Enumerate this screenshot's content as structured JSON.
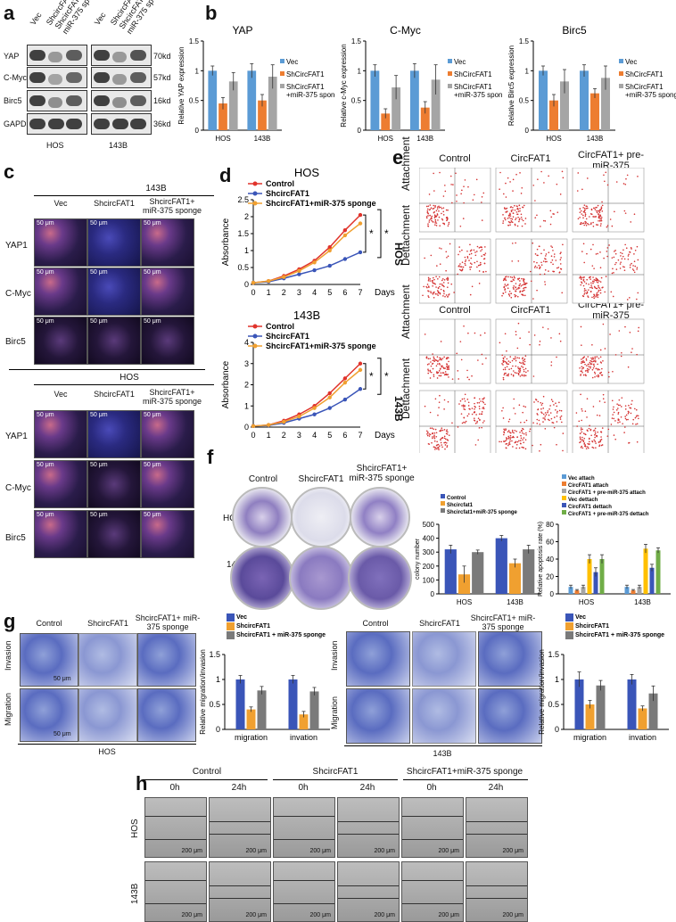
{
  "panels": {
    "a": {
      "letter": "a",
      "col_labels": [
        "Vec",
        "ShcircFAT1",
        "ShcircFAT1+ miR-375 sponge",
        "Vec",
        "ShcircFAT1",
        "ShcircFAT1+ miR-375 sponge"
      ],
      "rows": [
        "YAP",
        "C-Myc",
        "Birc5",
        "GAPDH"
      ],
      "kd": [
        "70kd",
        "57kd",
        "16kd",
        "36kd"
      ],
      "groups": [
        "HOS",
        "143B"
      ]
    },
    "b": {
      "letter": "b",
      "legend": [
        "Vec",
        "ShCircFAT1",
        "ShCircFAT1 +miR-375 sponge"
      ]
    },
    "c": {
      "letter": "c",
      "top_group": "143B",
      "bottom_group": "HOS",
      "col_labels": [
        "Vec",
        "ShcircFAT1",
        "ShcircFAT1+ miR-375 sponge"
      ],
      "row_labels": [
        "YAP1",
        "C-Myc",
        "Birc5"
      ],
      "scale": "50 μm"
    },
    "d": {
      "letter": "d",
      "sig": "*"
    },
    "e": {
      "letter": "e",
      "col_labels": [
        "Control",
        "CircFAT1",
        "CircFAT1+ pre-miR-375"
      ],
      "row_labels": [
        "Attachment",
        "Dettachment"
      ],
      "groups": [
        "HOS",
        "143B"
      ]
    },
    "f": {
      "letter": "f",
      "col_labels": [
        "Control",
        "ShcircFAT1",
        "ShcircFAT1+ miR-375 sponge"
      ],
      "row_labels": [
        "HOS",
        "143B"
      ]
    },
    "g": {
      "letter": "g",
      "col_labels": [
        "Control",
        "ShcircFAT1",
        "ShcircFAT1+ miR-375 sponge"
      ],
      "row_labels": [
        "Invasion",
        "Migration"
      ],
      "groups": [
        "HOS",
        "143B"
      ],
      "scale": "50 μm"
    },
    "h": {
      "letter": "h",
      "groups": [
        "Control",
        "ShcircFAT1",
        "ShcircFAT1+miR-375 sponge"
      ],
      "times": [
        "0h",
        "24h"
      ],
      "row_labels": [
        "HOS",
        "143B"
      ],
      "scale": "200 μm"
    }
  },
  "chart_data": [
    {
      "id": "b-yap",
      "type": "bar",
      "title": "YAP",
      "ylabel": "Relative YAP expression",
      "categories": [
        "HOS",
        "143B"
      ],
      "ylim": [
        0,
        1.5
      ],
      "yticks": [
        0,
        0.5,
        1.0,
        1.5
      ],
      "series": [
        {
          "name": "Vec",
          "values": [
            1.0,
            1.0
          ],
          "err": [
            0.08,
            0.12
          ],
          "color": "#5b9bd5"
        },
        {
          "name": "ShCircFAT1",
          "values": [
            0.45,
            0.5
          ],
          "err": [
            0.1,
            0.1
          ],
          "color": "#ed7d31"
        },
        {
          "name": "ShCircFAT1 +miR-375 sponge",
          "values": [
            0.82,
            0.9
          ],
          "err": [
            0.15,
            0.2
          ],
          "color": "#a5a5a5"
        }
      ]
    },
    {
      "id": "b-cmyc",
      "type": "bar",
      "title": "C-Myc",
      "ylabel": "Relative c-Myc expression",
      "categories": [
        "HOS",
        "143B"
      ],
      "ylim": [
        0,
        1.5
      ],
      "yticks": [
        0,
        0.5,
        1.0,
        1.5
      ],
      "series": [
        {
          "name": "Vec",
          "values": [
            1.0,
            1.0
          ],
          "err": [
            0.1,
            0.12
          ],
          "color": "#5b9bd5"
        },
        {
          "name": "ShCircFAT1",
          "values": [
            0.28,
            0.38
          ],
          "err": [
            0.08,
            0.1
          ],
          "color": "#ed7d31"
        },
        {
          "name": "ShCircFAT1 +miR-375 sponge",
          "values": [
            0.72,
            0.85
          ],
          "err": [
            0.2,
            0.25
          ],
          "color": "#a5a5a5"
        }
      ]
    },
    {
      "id": "b-birc5",
      "type": "bar",
      "title": "Birc5",
      "ylabel": "Relative Birc5 expression",
      "categories": [
        "HOS",
        "143B"
      ],
      "ylim": [
        0,
        1.5
      ],
      "yticks": [
        0,
        0.5,
        1.0,
        1.5
      ],
      "series": [
        {
          "name": "Vec",
          "values": [
            1.0,
            1.0
          ],
          "err": [
            0.08,
            0.1
          ],
          "color": "#5b9bd5"
        },
        {
          "name": "ShCircFAT1",
          "values": [
            0.5,
            0.62
          ],
          "err": [
            0.1,
            0.08
          ],
          "color": "#ed7d31"
        },
        {
          "name": "ShCircFAT1 +miR-375 sponge",
          "values": [
            0.82,
            0.88
          ],
          "err": [
            0.2,
            0.2
          ],
          "color": "#a5a5a5"
        }
      ]
    },
    {
      "id": "d-hos",
      "type": "line",
      "title": "HOS",
      "ylabel": "Absorbance",
      "xlabel": "Days",
      "x": [
        0,
        1,
        2,
        3,
        4,
        5,
        6,
        7
      ],
      "ylim": [
        0,
        2.5
      ],
      "yticks": [
        0.0,
        0.5,
        1.0,
        1.5,
        2.0,
        2.5
      ],
      "series": [
        {
          "name": "Control",
          "values": [
            0.05,
            0.1,
            0.25,
            0.45,
            0.7,
            1.1,
            1.6,
            2.05
          ],
          "color": "#e0332b"
        },
        {
          "name": "ShcircFAT1",
          "values": [
            0.05,
            0.08,
            0.18,
            0.3,
            0.42,
            0.55,
            0.75,
            0.95
          ],
          "color": "#3a55b8"
        },
        {
          "name": "ShcircFAT1+miR-375 sponge",
          "values": [
            0.05,
            0.1,
            0.22,
            0.4,
            0.65,
            1.0,
            1.45,
            1.8
          ],
          "color": "#f0a030"
        }
      ]
    },
    {
      "id": "d-143b",
      "type": "line",
      "title": "143B",
      "ylabel": "Absorbance",
      "xlabel": "Days",
      "x": [
        0,
        1,
        2,
        3,
        4,
        5,
        6,
        7
      ],
      "ylim": [
        0,
        4
      ],
      "yticks": [
        0,
        1,
        2,
        3,
        4
      ],
      "series": [
        {
          "name": "Control",
          "values": [
            0.05,
            0.1,
            0.3,
            0.6,
            1.0,
            1.6,
            2.3,
            3.0
          ],
          "color": "#e0332b"
        },
        {
          "name": "ShcircFAT1",
          "values": [
            0.05,
            0.08,
            0.2,
            0.4,
            0.6,
            0.9,
            1.3,
            1.8
          ],
          "color": "#3a55b8"
        },
        {
          "name": "ShcircFAT1+miR-375 sponge",
          "values": [
            0.05,
            0.1,
            0.25,
            0.5,
            0.9,
            1.4,
            2.1,
            2.7
          ],
          "color": "#f0a030"
        }
      ]
    },
    {
      "id": "f-colony",
      "type": "bar",
      "ylabel": "colony number",
      "categories": [
        "HOS",
        "143B"
      ],
      "ylim": [
        0,
        500
      ],
      "yticks": [
        0,
        100,
        200,
        300,
        400,
        500
      ],
      "series": [
        {
          "name": "Control",
          "values": [
            320,
            400
          ],
          "err": [
            30,
            20
          ],
          "color": "#3a55b8"
        },
        {
          "name": "Shcircfat1",
          "values": [
            140,
            220
          ],
          "err": [
            60,
            30
          ],
          "color": "#f0a030"
        },
        {
          "name": "Shcircfat1+miR-375 sponge",
          "values": [
            300,
            320
          ],
          "err": [
            15,
            30
          ],
          "color": "#7a7a7a"
        }
      ]
    },
    {
      "id": "f-apop",
      "type": "bar",
      "ylabel": "Relative apoptosis rate (%)",
      "categories": [
        "HOS",
        "143B"
      ],
      "ylim": [
        0,
        80
      ],
      "yticks": [
        0,
        20,
        40,
        60,
        80
      ],
      "series": [
        {
          "name": "Vec attach",
          "values": [
            8,
            8
          ],
          "err": [
            2,
            2
          ],
          "color": "#5b9bd5"
        },
        {
          "name": "CircFAT1 attach",
          "values": [
            4,
            4
          ],
          "err": [
            1,
            1
          ],
          "color": "#ed7d31"
        },
        {
          "name": "CircFAT1 + pre-miR-375 attach",
          "values": [
            8,
            8
          ],
          "err": [
            2,
            2
          ],
          "color": "#a5a5a5"
        },
        {
          "name": "Vec dettach",
          "values": [
            40,
            52
          ],
          "err": [
            5,
            5
          ],
          "color": "#ffc000"
        },
        {
          "name": "CircFAT1 dettach",
          "values": [
            25,
            30
          ],
          "err": [
            5,
            4
          ],
          "color": "#3a55b8"
        },
        {
          "name": "CircFAT1 + pre-miR-375 dettach",
          "values": [
            40,
            50
          ],
          "err": [
            5,
            3
          ],
          "color": "#70ad47"
        }
      ]
    },
    {
      "id": "g-hos",
      "type": "bar",
      "ylabel": "Relative migration/invasion",
      "categories": [
        "migration",
        "invation"
      ],
      "ylim": [
        0,
        1.5
      ],
      "yticks": [
        0,
        0.5,
        1.0,
        1.5
      ],
      "series": [
        {
          "name": "Vec",
          "values": [
            1.0,
            1.0
          ],
          "err": [
            0.08,
            0.08
          ],
          "color": "#3a55b8"
        },
        {
          "name": "ShcircFAT1",
          "values": [
            0.4,
            0.3
          ],
          "err": [
            0.05,
            0.06
          ],
          "color": "#f0a030"
        },
        {
          "name": "ShcircFAT1 + miR-375 sponge",
          "values": [
            0.78,
            0.76
          ],
          "err": [
            0.08,
            0.08
          ],
          "color": "#7a7a7a"
        }
      ]
    },
    {
      "id": "g-143b",
      "type": "bar",
      "ylabel": "Relative migration/invasion",
      "categories": [
        "migration",
        "invation"
      ],
      "ylim": [
        0,
        1.5
      ],
      "yticks": [
        0,
        0.5,
        1.0,
        1.5
      ],
      "series": [
        {
          "name": "Vec",
          "values": [
            1.0,
            1.0
          ],
          "err": [
            0.15,
            0.1
          ],
          "color": "#3a55b8"
        },
        {
          "name": "ShcircFAT1",
          "values": [
            0.5,
            0.42
          ],
          "err": [
            0.08,
            0.05
          ],
          "color": "#f0a030"
        },
        {
          "name": "ShcircFAT1 + miR-375 sponge",
          "values": [
            0.88,
            0.72
          ],
          "err": [
            0.1,
            0.15
          ],
          "color": "#7a7a7a"
        }
      ]
    }
  ]
}
